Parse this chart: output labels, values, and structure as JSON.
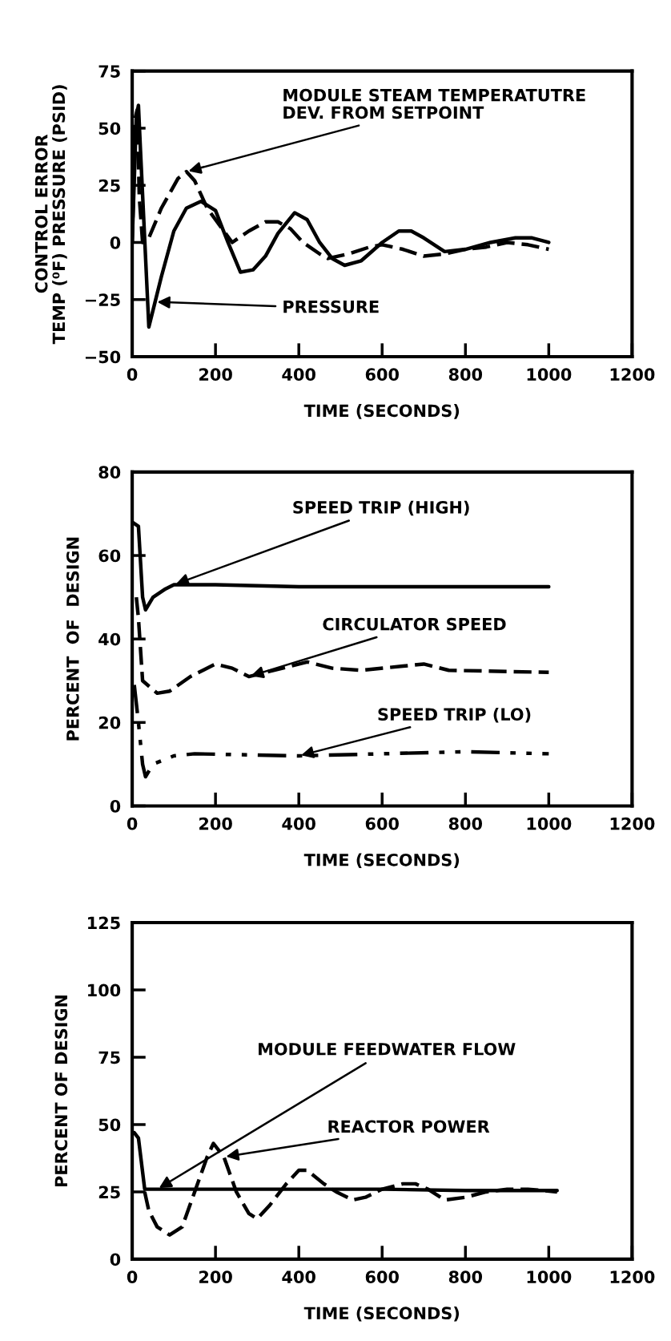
{
  "chart_data": [
    {
      "type": "line",
      "xlabel": "TIME (SECONDS)",
      "ylabel": "CONTROL ERROR\nTEMP (⁰F) PRESSURE (PSID)",
      "xlim": [
        0,
        1200
      ],
      "xticks": [
        0,
        200,
        400,
        600,
        800,
        1000,
        1200
      ],
      "ylim": [
        -50,
        75
      ],
      "yticks": [
        -50,
        -25,
        0,
        25,
        50,
        75
      ],
      "grid": false,
      "legend": false,
      "marker": "none",
      "series": [
        {
          "color": "#000000",
          "line_style": "solid",
          "x": [
            0,
            10,
            15,
            20,
            40,
            55,
            70,
            100,
            130,
            165,
            200,
            230,
            260,
            290,
            320,
            350,
            390,
            420,
            450,
            480,
            510,
            550,
            600,
            640,
            670,
            700,
            750,
            800,
            860,
            920,
            960,
            1000
          ],
          "values": [
            0,
            55,
            60,
            40,
            -37,
            -26,
            -15,
            5,
            15,
            18,
            14,
            0,
            -13,
            -12,
            -6,
            4,
            13,
            10,
            0,
            -7,
            -10,
            -8,
            0,
            5,
            5,
            2,
            -4,
            -3,
            0,
            2,
            2,
            0
          ]
        },
        {
          "color": "#000000",
          "line_style": "dashed",
          "x": [
            0,
            8,
            12,
            17,
            25,
            40,
            70,
            110,
            130,
            150,
            180,
            220,
            240,
            280,
            320,
            350,
            380,
            410,
            450,
            470,
            520,
            570,
            600,
            650,
            700,
            750,
            800,
            850,
            900,
            950,
            1000
          ],
          "values": [
            0,
            55,
            58,
            20,
            0,
            2,
            15,
            28,
            31,
            27,
            15,
            5,
            0,
            5,
            9,
            9,
            6,
            0,
            -5,
            -7,
            -5,
            -2,
            -1,
            -3,
            -6,
            -5,
            -3,
            -2,
            0,
            -1,
            -3
          ]
        }
      ],
      "annotations": [
        {
          "text": "MODULE STEAM TEMPERATUTRE\nDEV. FROM SETPOINT",
          "x": 130,
          "y": 31
        },
        {
          "text": "PRESSURE",
          "x": 55,
          "y": -26
        }
      ]
    },
    {
      "type": "line",
      "xlabel": "TIME (SECONDS)",
      "ylabel": "PERCENT  OF  DESIGN",
      "xlim": [
        0,
        1200
      ],
      "xticks": [
        0,
        200,
        400,
        600,
        800,
        1000,
        1200
      ],
      "ylim": [
        0,
        80
      ],
      "yticks": [
        0,
        20,
        40,
        60,
        80
      ],
      "grid": false,
      "legend": false,
      "marker": "none",
      "series": [
        {
          "color": "#000000",
          "line_style": "solid",
          "x": [
            0,
            15,
            25,
            32,
            50,
            80,
            100,
            200,
            400,
            600,
            800,
            1000
          ],
          "values": [
            68,
            67,
            50,
            47,
            50,
            52,
            53,
            53,
            52.5,
            52.5,
            52.5,
            52.5
          ]
        },
        {
          "color": "#000000",
          "line_style": "dashed",
          "x": [
            10,
            15,
            25,
            60,
            90,
            140,
            200,
            240,
            280,
            320,
            420,
            480,
            550,
            650,
            700,
            760,
            1000
          ],
          "values": [
            50,
            45,
            30,
            27,
            27.5,
            31,
            34,
            33,
            31,
            32,
            34.5,
            33,
            32.5,
            33.5,
            34,
            32.5,
            32
          ]
        },
        {
          "color": "#000000",
          "line_style": "dashdotdot",
          "x": [
            5,
            15,
            25,
            32,
            50,
            100,
            150,
            400,
            600,
            800,
            1000
          ],
          "values": [
            29,
            20,
            10,
            7,
            10,
            12,
            12.5,
            12,
            12.5,
            13,
            12.5
          ]
        }
      ],
      "annotations": [
        {
          "text": "SPEED TRIP (HIGH)",
          "x": 100,
          "y": 53
        },
        {
          "text": "CIRCULATOR SPEED",
          "x": 280,
          "y": 31
        },
        {
          "text": "SPEED TRIP (LO)",
          "x": 400,
          "y": 12
        }
      ]
    },
    {
      "type": "line",
      "xlabel": "TIME (SECONDS)",
      "ylabel": "PERCENT OF DESIGN",
      "xlim": [
        0,
        1200
      ],
      "xticks": [
        0,
        200,
        400,
        600,
        800,
        1000,
        1200
      ],
      "ylim": [
        0,
        125
      ],
      "yticks": [
        0,
        25,
        50,
        75,
        100,
        125
      ],
      "grid": false,
      "legend": false,
      "marker": "none",
      "series": [
        {
          "color": "#000000",
          "line_style": "solid",
          "x": [
            5,
            15,
            30,
            60,
            200,
            400,
            600,
            800,
            1020
          ],
          "values": [
            47,
            45,
            26,
            26,
            26,
            26,
            26,
            25.5,
            25.5
          ]
        },
        {
          "color": "#000000",
          "line_style": "dashed",
          "x": [
            30,
            40,
            60,
            90,
            120,
            150,
            180,
            195,
            220,
            250,
            280,
            300,
            330,
            370,
            400,
            420,
            460,
            490,
            530,
            560,
            600,
            650,
            680,
            710,
            750,
            800,
            850,
            900,
            950,
            1020
          ],
          "values": [
            25,
            18,
            12,
            9,
            12,
            25,
            38,
            43,
            38,
            25,
            17,
            15,
            20,
            28,
            33,
            33,
            28,
            25,
            22,
            23,
            26,
            28,
            28,
            26,
            22,
            23,
            25,
            26,
            26,
            25
          ]
        }
      ],
      "annotations": [
        {
          "text": "MODULE FEEDWATER FLOW",
          "x": 60,
          "y": 26
        },
        {
          "text": "REACTOR POWER",
          "x": 220,
          "y": 38
        }
      ]
    }
  ]
}
